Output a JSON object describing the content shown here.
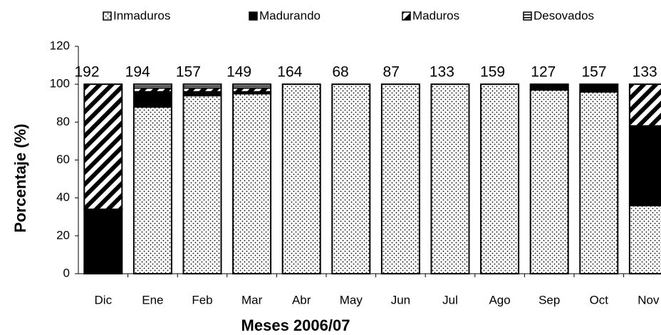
{
  "chart_data": {
    "type": "stacked_bar",
    "xlabel": "Meses 2006/07",
    "ylabel": "Porcentaje  (%)",
    "categories": [
      "Dic",
      "Ene",
      "Feb",
      "Mar",
      "Abr",
      "May",
      "Jun",
      "Jul",
      "Ago",
      "Sep",
      "Oct",
      "Nov"
    ],
    "series": [
      {
        "name": "Inmaduros",
        "color": "#000000",
        "pattern": "dots",
        "values": [
          0,
          88,
          94,
          95,
          100,
          100,
          100,
          100,
          100,
          97,
          96,
          36
        ]
      },
      {
        "name": "Madurando",
        "color": "#000000",
        "pattern": "solid",
        "values": [
          34,
          8,
          2,
          1,
          0,
          0,
          0,
          0,
          0,
          3,
          4,
          42
        ]
      },
      {
        "name": "Maduros",
        "color": "#000000",
        "pattern": "diagonal",
        "values": [
          66,
          2,
          2,
          2,
          0,
          0,
          0,
          0,
          0,
          0,
          0,
          22
        ]
      },
      {
        "name": "Desovados",
        "color": "#000000",
        "pattern": "horizontal",
        "values": [
          0,
          2,
          2,
          2,
          0,
          0,
          0,
          0,
          0,
          0,
          0,
          0
        ]
      }
    ],
    "annotations": [
      192,
      194,
      157,
      149,
      164,
      68,
      87,
      133,
      159,
      127,
      157,
      133
    ],
    "ylim": [
      0,
      120
    ],
    "yticks": [
      0,
      20,
      40,
      60,
      80,
      100,
      120
    ],
    "grid": false,
    "legend": "top"
  }
}
